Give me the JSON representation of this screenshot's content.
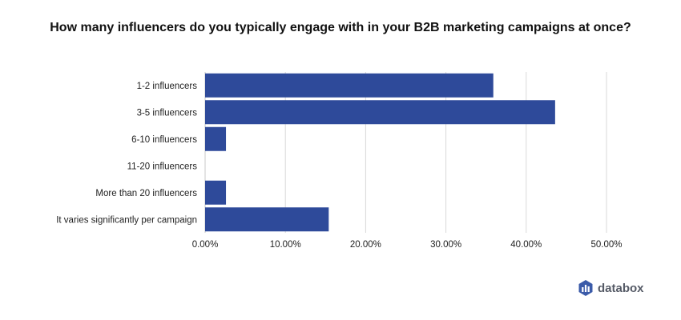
{
  "chart_data": {
    "type": "bar",
    "orientation": "horizontal",
    "title": "How many influencers do you typically engage with in your B2B marketing campaigns at once?",
    "categories": [
      "1-2 influencers",
      "3-5 influencers",
      "6-10 influencers",
      "11-20 influencers",
      "More than 20 influencers",
      "It varies significantly per campaign"
    ],
    "values": [
      35.9,
      43.6,
      2.6,
      0,
      2.6,
      15.4
    ],
    "xlim": [
      0,
      50
    ],
    "xticks": [
      0,
      10,
      20,
      30,
      40,
      50
    ],
    "xtick_labels": [
      "0.00%",
      "10.00%",
      "20.00%",
      "30.00%",
      "40.00%",
      "50.00%"
    ],
    "grid": true,
    "bar_color": "#2e4a9a",
    "grid_color": "#d9d9d9"
  },
  "brand": {
    "name": "databox",
    "icon": "databox-logo-icon",
    "color": "#3b5ba9"
  }
}
